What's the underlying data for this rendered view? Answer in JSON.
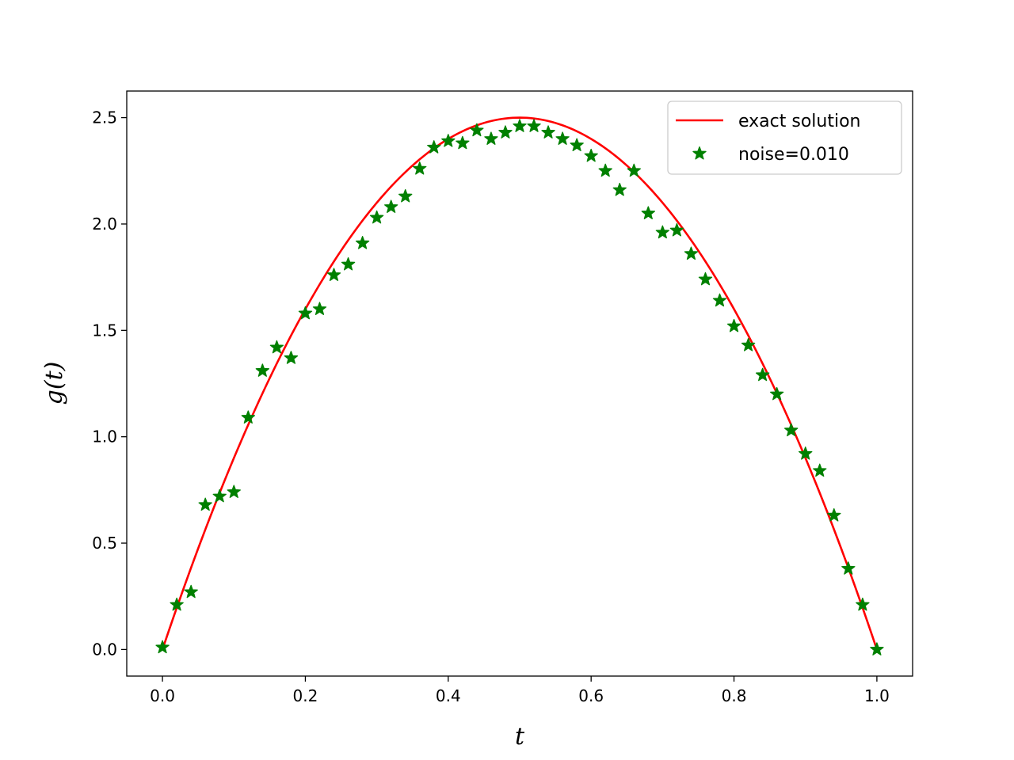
{
  "chart_data": {
    "type": "line",
    "xlabel": "t",
    "ylabel": "g(t)",
    "xlim": [
      -0.05,
      1.05
    ],
    "ylim": [
      -0.125,
      2.625
    ],
    "xticks": [
      "0.0",
      "0.2",
      "0.4",
      "0.6",
      "0.8",
      "1.0"
    ],
    "yticks": [
      "0.0",
      "0.5",
      "1.0",
      "1.5",
      "2.0",
      "2.5"
    ],
    "grid": false,
    "legend_position": "top-right",
    "colors": {
      "exact": "#ff0000",
      "noise": "#008000"
    },
    "series": [
      {
        "name": "exact solution",
        "style": "line",
        "function": "10*t*(1-t)",
        "x": [
          0.0,
          0.05,
          0.1,
          0.15,
          0.2,
          0.25,
          0.3,
          0.35,
          0.4,
          0.45,
          0.5,
          0.55,
          0.6,
          0.65,
          0.7,
          0.75,
          0.8,
          0.85,
          0.9,
          0.95,
          1.0
        ],
        "y": [
          0.0,
          0.475,
          0.9,
          1.275,
          1.6,
          1.875,
          2.1,
          2.275,
          2.4,
          2.475,
          2.5,
          2.475,
          2.4,
          2.275,
          2.1,
          1.875,
          1.6,
          1.275,
          0.9,
          0.475,
          0.0
        ]
      },
      {
        "name": "noise=0.010",
        "style": "star-markers",
        "x": [
          0.0,
          0.02,
          0.04,
          0.06,
          0.08,
          0.1,
          0.12,
          0.14,
          0.16,
          0.18,
          0.2,
          0.22,
          0.24,
          0.26,
          0.28,
          0.3,
          0.32,
          0.34,
          0.36,
          0.38,
          0.4,
          0.42,
          0.44,
          0.46,
          0.48,
          0.5,
          0.52,
          0.54,
          0.56,
          0.58,
          0.6,
          0.62,
          0.64,
          0.66,
          0.68,
          0.7,
          0.72,
          0.74,
          0.76,
          0.78,
          0.8,
          0.82,
          0.84,
          0.86,
          0.88,
          0.9,
          0.92,
          0.94,
          0.96,
          0.98,
          1.0
        ],
        "y": [
          0.01,
          0.21,
          0.27,
          0.68,
          0.72,
          0.74,
          1.09,
          1.31,
          1.42,
          1.37,
          1.58,
          1.6,
          1.76,
          1.81,
          1.91,
          2.03,
          2.08,
          2.13,
          2.26,
          2.36,
          2.39,
          2.38,
          2.44,
          2.4,
          2.43,
          2.46,
          2.46,
          2.43,
          2.4,
          2.37,
          2.32,
          2.25,
          2.16,
          2.25,
          2.05,
          1.96,
          1.97,
          1.86,
          1.74,
          1.64,
          1.52,
          1.43,
          1.29,
          1.2,
          1.03,
          0.92,
          0.84,
          0.63,
          0.38,
          0.21,
          0.0
        ]
      }
    ]
  }
}
